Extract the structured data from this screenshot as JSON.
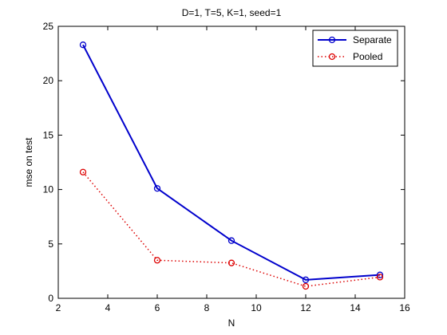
{
  "chart_data": {
    "type": "line",
    "title": "D=1, T=5, K=1, seed=1",
    "xlabel": "N",
    "ylabel": "mse on test",
    "xlim": [
      2,
      16
    ],
    "ylim": [
      0,
      25
    ],
    "xticks": [
      2,
      4,
      6,
      8,
      10,
      12,
      14,
      16
    ],
    "yticks": [
      0,
      5,
      10,
      15,
      20,
      25
    ],
    "grid": false,
    "legend_position": "top-right",
    "x": [
      3,
      6,
      9,
      12,
      15
    ],
    "series": [
      {
        "name": "Separate",
        "values": [
          23.3,
          10.1,
          5.3,
          1.7,
          2.15
        ],
        "color": "#0000cc",
        "line": "solid",
        "marker": "circle"
      },
      {
        "name": "Pooled",
        "values": [
          11.6,
          3.5,
          3.25,
          1.1,
          1.95
        ],
        "color": "#dd0000",
        "line": "dotted",
        "marker": "circle"
      }
    ]
  }
}
